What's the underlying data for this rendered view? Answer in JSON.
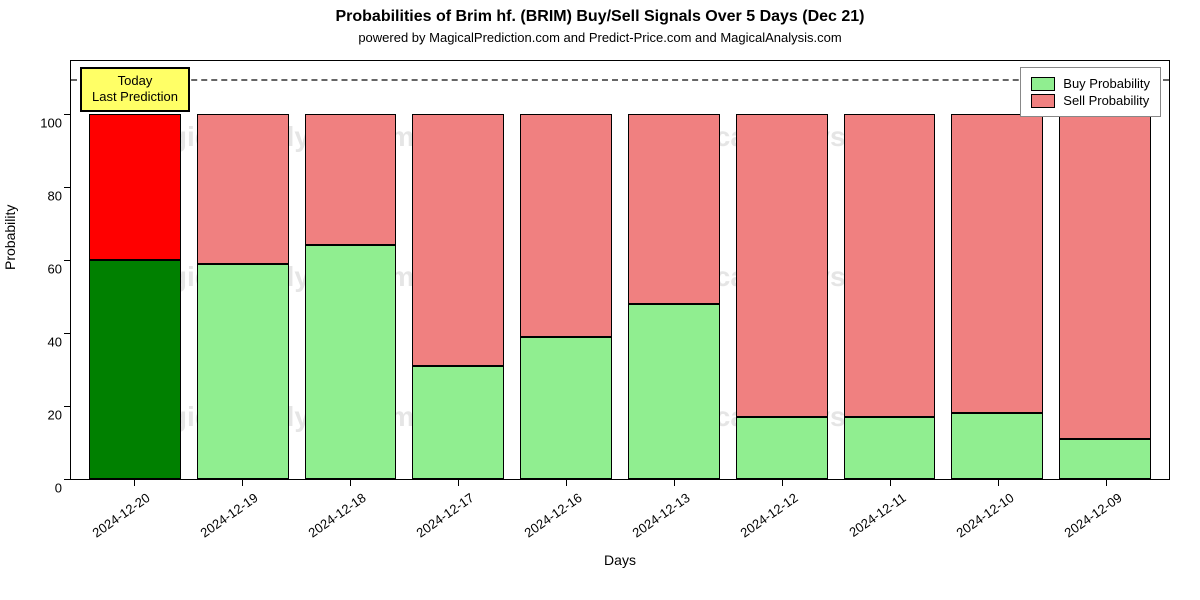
{
  "chart": {
    "type": "stacked-bar",
    "title": "Probabilities of Brim hf. (BRIM) Buy/Sell Signals Over 5 Days (Dec 21)",
    "title_fontsize": 16,
    "subtitle": "powered by MagicalPrediction.com and Predict-Price.com and MagicalAnalysis.com",
    "subtitle_fontsize": 13,
    "xlabel": "Days",
    "ylabel": "Probability",
    "label_fontsize": 14,
    "tick_fontsize": 13,
    "background_color": "#ffffff",
    "border_color": "#000000",
    "ylim": [
      0,
      115
    ],
    "yticks": [
      0,
      20,
      40,
      60,
      80,
      100
    ],
    "categories": [
      "2024-12-20",
      "2024-12-19",
      "2024-12-18",
      "2024-12-17",
      "2024-12-16",
      "2024-12-13",
      "2024-12-12",
      "2024-12-11",
      "2024-12-10",
      "2024-12-09"
    ],
    "series": {
      "buy": [
        60,
        59,
        64,
        31,
        39,
        48,
        17,
        17,
        18,
        11
      ],
      "sell": [
        40,
        41,
        36,
        69,
        61,
        52,
        83,
        83,
        82,
        89
      ]
    },
    "colors": {
      "buy_default": "#90ee90",
      "sell_default": "#f08080",
      "buy_highlight": "#008000",
      "sell_highlight": "#ff0000",
      "bar_border": "#000000"
    },
    "highlight_index": 0,
    "bar_width_ratio": 0.85,
    "hline": {
      "y": 110,
      "style": "dashed",
      "color": "#666666"
    },
    "annotation": {
      "text_line1": "Today",
      "text_line2": "Last Prediction",
      "background": "#ffff66",
      "border": "#000000",
      "index": 0,
      "y": 108
    },
    "legend": {
      "position": "top-right",
      "items": [
        {
          "label": "Buy Probability",
          "color": "#90ee90"
        },
        {
          "label": "Sell Probability",
          "color": "#f08080"
        }
      ]
    },
    "watermarks": [
      "MagicalAnalysis.com",
      "MagicalAnalysis.com",
      "MagicalAnalysis.com",
      "MagicalAnalysis.com",
      "MagicalAnalysis.com",
      "MagicalAnalysis.com"
    ]
  }
}
